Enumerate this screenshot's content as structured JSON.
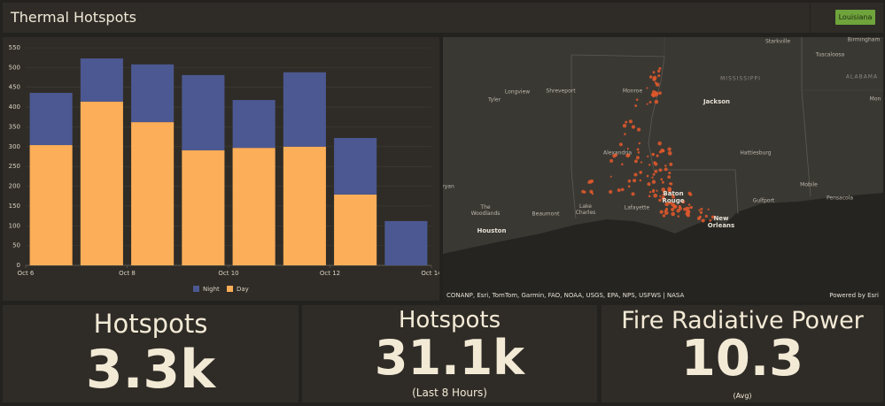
{
  "header": {
    "title": "Thermal Hotspots",
    "filter": "Louisiana"
  },
  "chart_data": {
    "type": "bar",
    "stacked": true,
    "x": [
      6,
      7,
      8,
      9,
      10,
      11,
      12,
      13
    ],
    "xlim": [
      6,
      14
    ],
    "xticks": [
      {
        "value": 6,
        "label": "Oct 6"
      },
      {
        "value": 8,
        "label": "Oct 8"
      },
      {
        "value": 10,
        "label": "Oct 10"
      },
      {
        "value": 12,
        "label": "Oct 12"
      },
      {
        "value": 14,
        "label": "Oct 14"
      }
    ],
    "ylim": [
      0,
      550
    ],
    "yticks": [
      0,
      50,
      100,
      150,
      200,
      250,
      300,
      350,
      400,
      450,
      500,
      550
    ],
    "grid": true,
    "legend": "bottom",
    "series": [
      {
        "name": "Night",
        "color": "#4c5891",
        "values": [
          132,
          109,
          146,
          190,
          121,
          188,
          143,
          112
        ]
      },
      {
        "name": "Day",
        "color": "#fcae58",
        "values": [
          304,
          414,
          362,
          291,
          297,
          300,
          179,
          0
        ]
      }
    ]
  },
  "map": {
    "labels": [
      "Starkville",
      "Birmingham",
      "Tuscaloosa",
      "MISSISSIPPI",
      "ALABAMA",
      "Mon",
      "Longview",
      "Shreveport",
      "Monroe",
      "Tyler",
      "Jackson",
      "Alexandria",
      "Hattiesburg",
      "ryan",
      "Mobile",
      "Baton Rouge",
      "Gulfport",
      "Pensacola",
      "The Woodlands",
      "Beaumont",
      "Lake Charles",
      "Lafayette",
      "New Orleans",
      "Houston"
    ],
    "attribution": "CONANP, Esri, TomTom, Garmin, FAO, NOAA, USGS, EPA, NPS, USFWS | NASA",
    "credit": "Powered by Esri"
  },
  "indicators": [
    {
      "title": "Hotspots",
      "value": "3.3k"
    },
    {
      "title": "Hotspots",
      "value": "31.1k",
      "note": "(Last 8 Hours)"
    },
    {
      "title": "Fire Radiative Power",
      "value": "10.3",
      "note": "(Avg)"
    }
  ]
}
